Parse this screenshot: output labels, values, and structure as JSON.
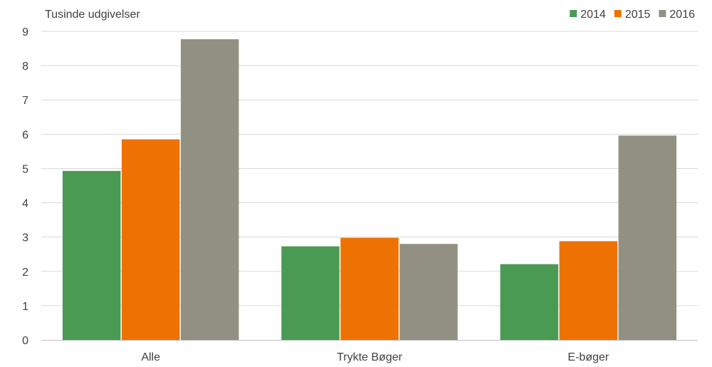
{
  "chart_data": {
    "type": "bar",
    "unit_label": "Tusinde udgivelser",
    "categories": [
      "Alle",
      "Trykte Bøger",
      "E-bøger"
    ],
    "series": [
      {
        "name": "2014",
        "color": "#4a9a53",
        "values": [
          4.93,
          2.73,
          2.21
        ]
      },
      {
        "name": "2015",
        "color": "#ee7203",
        "values": [
          5.85,
          2.98,
          2.88
        ]
      },
      {
        "name": "2016",
        "color": "#929080",
        "values": [
          8.77,
          2.8,
          5.96
        ]
      }
    ],
    "ylim": [
      0,
      9
    ],
    "yticks": [
      "0",
      "1",
      "2",
      "3",
      "4",
      "5",
      "6",
      "7",
      "8",
      "9"
    ],
    "grid": true,
    "legend_position": "top-right"
  }
}
